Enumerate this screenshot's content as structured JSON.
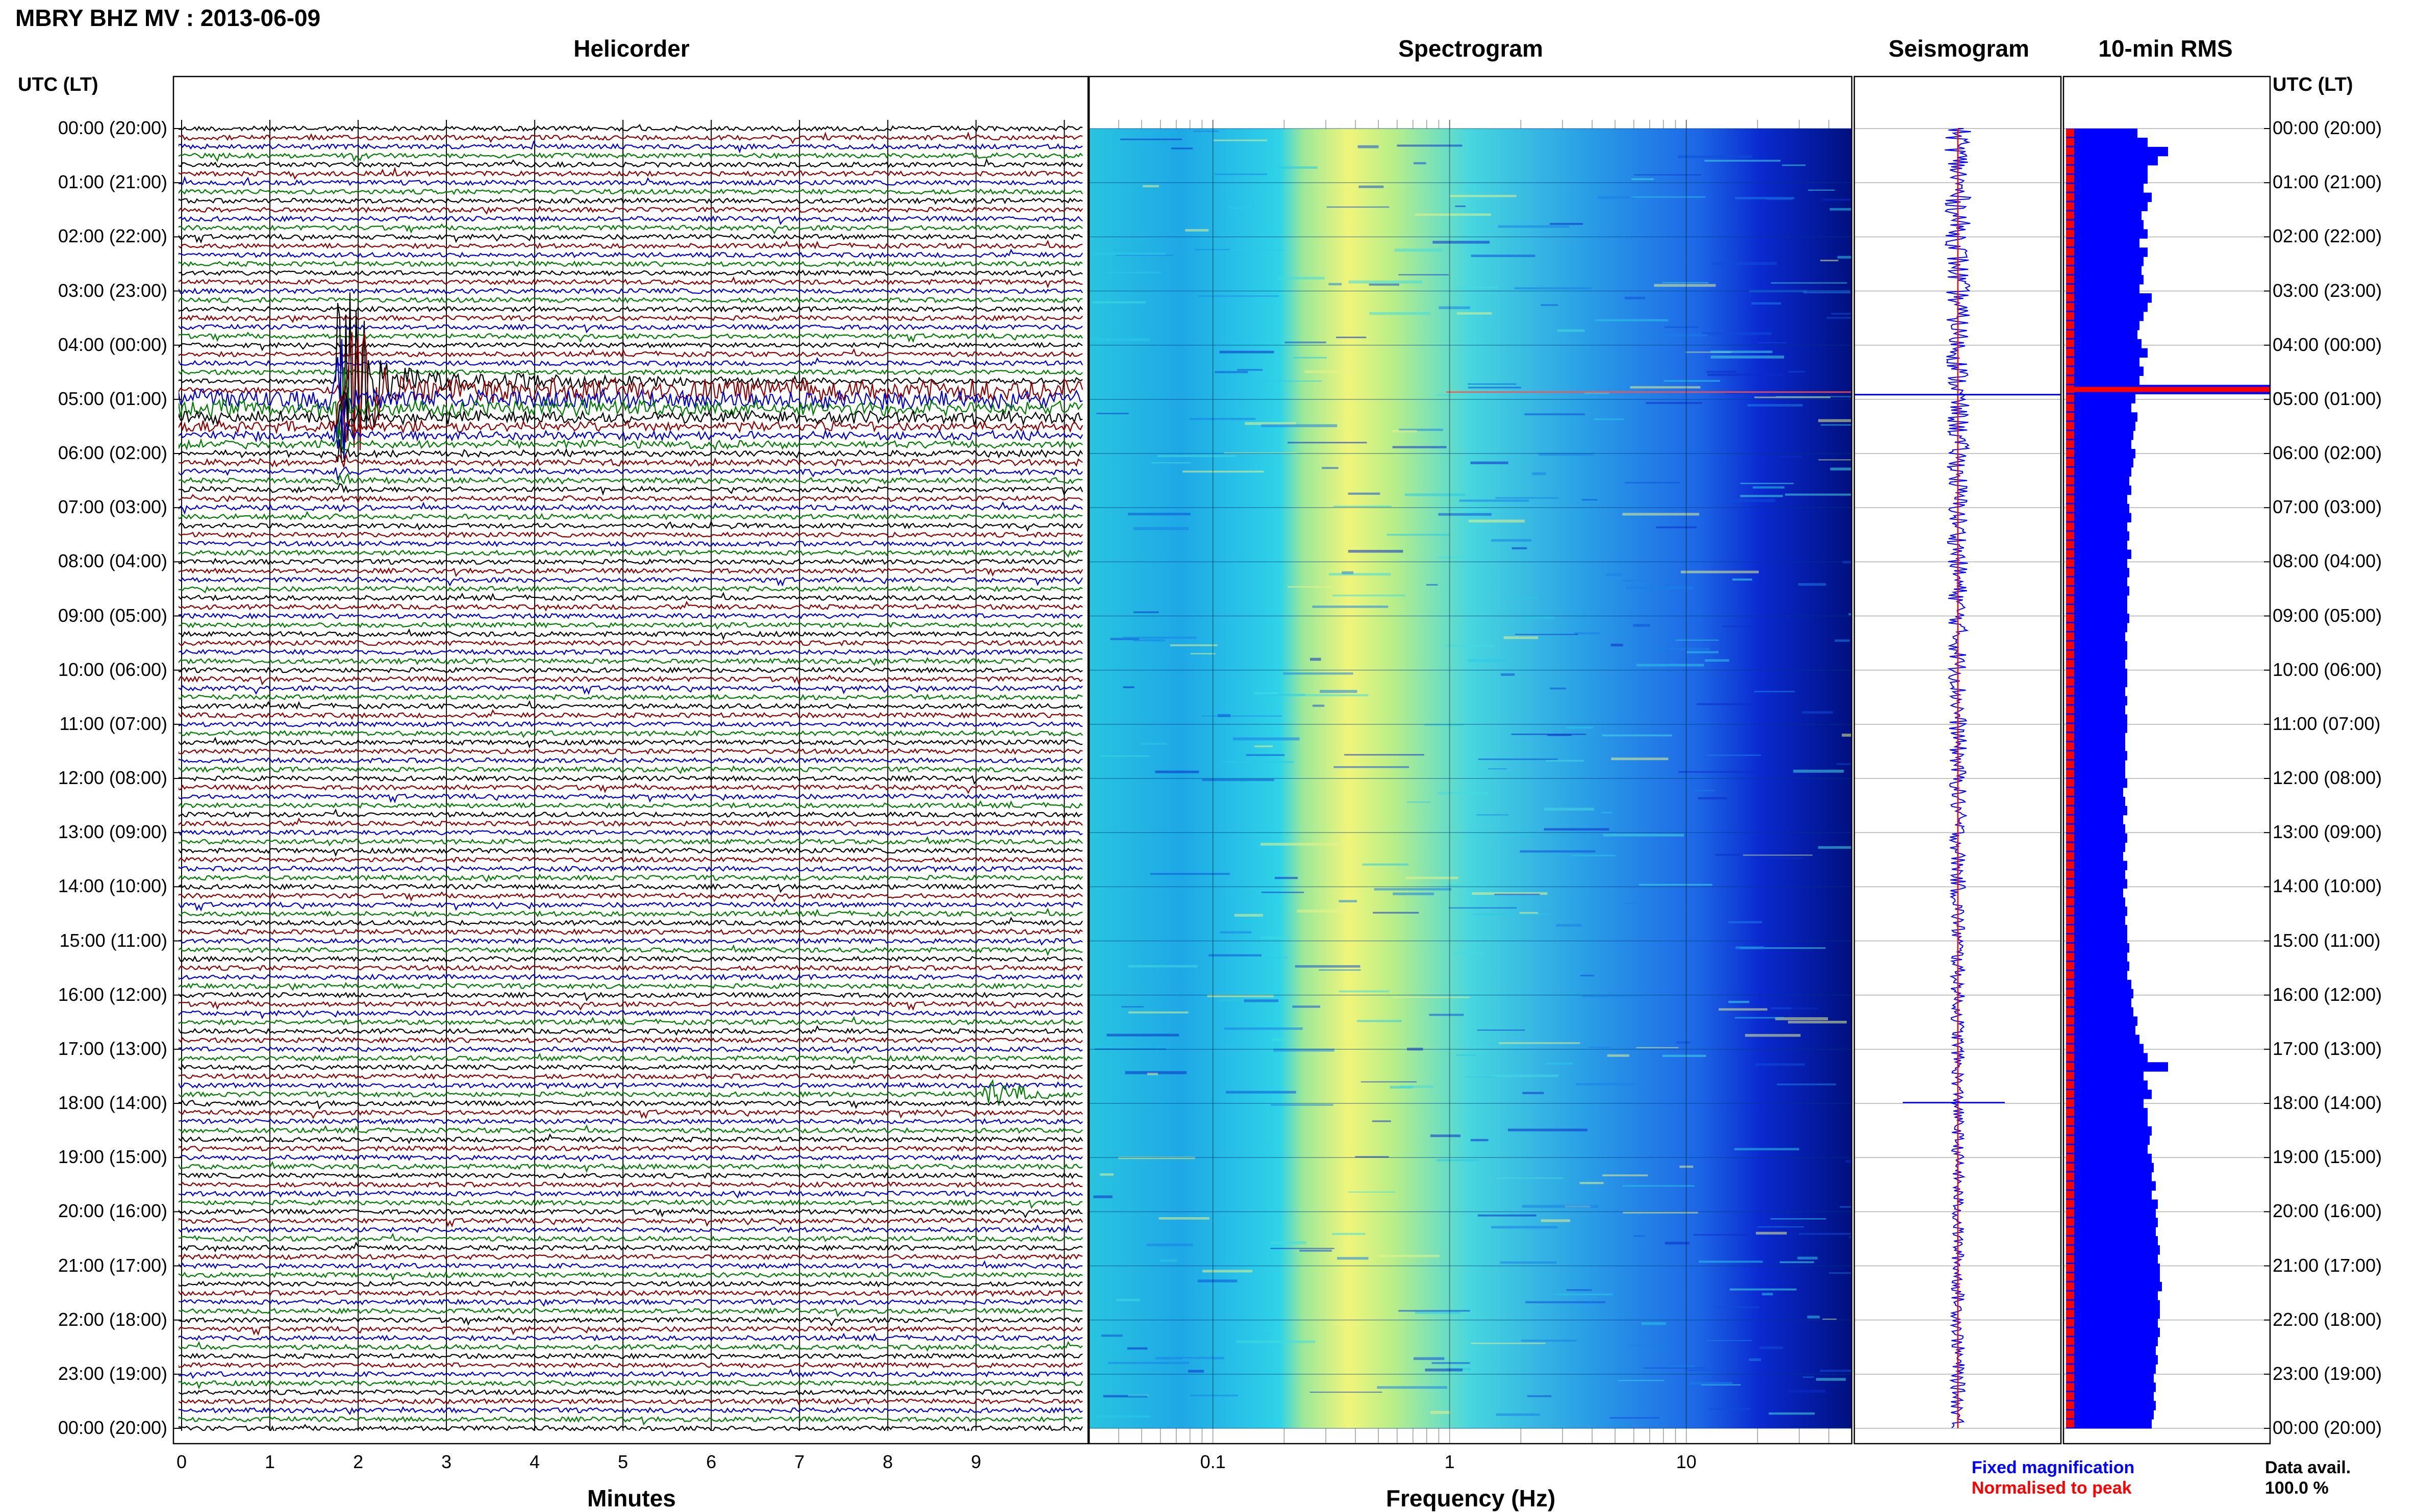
{
  "header": {
    "station_title": "MBRY BHZ MV : 2013-06-09",
    "utc_lt_left": "UTC (LT)",
    "utc_lt_right": "UTC (LT)"
  },
  "panels": {
    "helicorder": "Helicorder",
    "spectrogram": "Spectrogram",
    "seismogram": "Seismogram",
    "rms": "10-min RMS"
  },
  "time_labels": [
    "00:00 (20:00)",
    "01:00 (21:00)",
    "02:00 (22:00)",
    "03:00 (23:00)",
    "04:00 (00:00)",
    "05:00 (01:00)",
    "06:00 (02:00)",
    "07:00 (03:00)",
    "08:00 (04:00)",
    "09:00 (05:00)",
    "10:00 (06:00)",
    "11:00 (07:00)",
    "12:00 (08:00)",
    "13:00 (09:00)",
    "14:00 (10:00)",
    "15:00 (11:00)",
    "16:00 (12:00)",
    "17:00 (13:00)",
    "18:00 (14:00)",
    "19:00 (15:00)",
    "20:00 (16:00)",
    "21:00 (17:00)",
    "22:00 (18:00)",
    "23:00 (19:00)",
    "00:00 (20:00)"
  ],
  "helicorder_axis": {
    "label": "Minutes",
    "ticks": [
      "0",
      "1",
      "2",
      "3",
      "4",
      "5",
      "6",
      "7",
      "8",
      "9"
    ]
  },
  "spectrogram_axis": {
    "label": "Frequency (Hz)",
    "ticks": [
      "0.1",
      "1",
      "10"
    ],
    "scale": "log"
  },
  "legend": {
    "fixed": "Fixed magnification",
    "normalised": "Normalised to peak",
    "fixed_color": "#0000ff",
    "normalised_color": "#ff0000"
  },
  "data_avail": {
    "label": "Data avail.",
    "value": "100.0 %"
  },
  "colors": {
    "trace_colors": [
      "#000000",
      "#8b0000",
      "#0000cc",
      "#007a00"
    ],
    "rms_bar": "#0000ff",
    "rms_norm": "#ff0000"
  },
  "chart_data": [
    {
      "type": "line",
      "title": "Helicorder",
      "xlabel": "Minutes",
      "xlim": [
        0,
        10
      ],
      "notes": "Seismic trace lines every 10 minutes over 24 hours",
      "events": [
        {
          "utc": "04:40",
          "minute": 1.8,
          "description": "large event"
        },
        {
          "utc": "17:50",
          "minute": 9.0,
          "description": "small event"
        }
      ]
    },
    {
      "type": "heatmap",
      "title": "Spectrogram",
      "xlabel": "Frequency (Hz)",
      "xscale": "log",
      "xlim": [
        0.03,
        50
      ],
      "peak_band_hz": [
        0.2,
        0.6
      ]
    },
    {
      "type": "bar",
      "title": "10-min RMS",
      "series": [
        {
          "name": "Fixed magnification",
          "values": [
            0.35,
            0.4,
            0.5,
            0.45,
            0.4,
            0.4,
            0.38,
            0.42,
            0.4,
            0.37,
            0.38,
            0.4,
            0.36,
            0.4,
            0.38,
            0.37,
            0.38,
            0.36,
            0.42,
            0.4,
            0.38,
            0.36,
            0.35,
            0.37,
            0.4,
            0.36,
            0.38,
            0.36,
            1.0,
            0.34,
            0.32,
            0.35,
            0.34,
            0.33,
            0.32,
            0.34,
            0.33,
            0.32,
            0.31,
            0.32,
            0.3,
            0.31,
            0.32,
            0.3,
            0.31,
            0.3,
            0.32,
            0.3,
            0.31,
            0.3,
            0.31,
            0.3,
            0.3,
            0.31,
            0.3,
            0.29,
            0.3,
            0.3,
            0.29,
            0.3,
            0.3,
            0.29,
            0.3,
            0.29,
            0.3,
            0.3,
            0.29,
            0.29,
            0.3,
            0.29,
            0.29,
            0.3,
            0.28,
            0.29,
            0.3,
            0.28,
            0.29,
            0.3,
            0.29,
            0.28,
            0.3,
            0.29,
            0.3,
            0.28,
            0.29,
            0.3,
            0.29,
            0.3,
            0.3,
            0.31,
            0.3,
            0.31,
            0.3,
            0.32,
            0.33,
            0.32,
            0.33,
            0.35,
            0.34,
            0.36,
            0.38,
            0.4,
            0.5,
            0.38,
            0.4,
            0.42,
            0.38,
            0.4,
            0.4,
            0.42,
            0.41,
            0.4,
            0.42,
            0.43,
            0.42,
            0.44,
            0.42,
            0.45,
            0.44,
            0.45,
            0.44,
            0.45,
            0.46,
            0.45,
            0.46,
            0.46,
            0.47,
            0.45,
            0.46,
            0.46,
            0.45,
            0.46,
            0.45,
            0.44,
            0.45,
            0.44,
            0.43,
            0.44,
            0.43,
            0.44,
            0.43,
            0.42
          ]
        }
      ]
    }
  ]
}
